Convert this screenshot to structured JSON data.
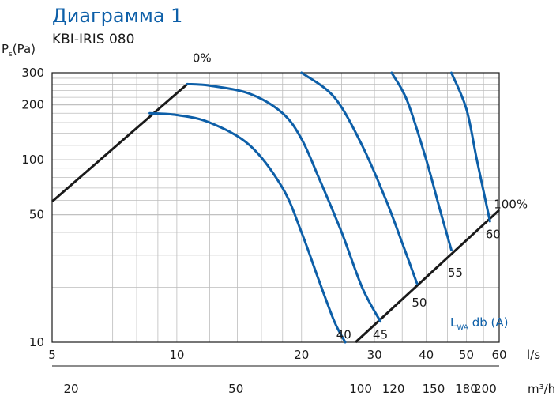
{
  "title": "Диаграмма 1",
  "subtitle": "KBI-IRIS 080",
  "chart_data": {
    "type": "line",
    "xscale": "log",
    "yscale": "log",
    "xlim": [
      5,
      60
    ],
    "ylim": [
      10,
      300
    ],
    "x_ticks": [
      "5",
      "10",
      "20",
      "30",
      "40",
      "50",
      "60"
    ],
    "x_unit": "l/s",
    "x2_ticks": [
      "20",
      "50",
      "100",
      "120",
      "150",
      "180",
      "200"
    ],
    "x2_unit": "m³/h",
    "y_ticks": [
      "10",
      "50",
      "100",
      "200",
      "300"
    ],
    "ylabel": {
      "main": "P",
      "sub": "s",
      "tail": "(Pa)"
    },
    "legend": {
      "main": "L",
      "sub": "WA",
      "tail": " db (A)"
    },
    "colors": {
      "curve": "#0d5fa8",
      "line": "#1a1a1a"
    },
    "series": [
      {
        "name": "0%",
        "x": [
          5,
          10.6
        ],
        "y": [
          59,
          260
        ]
      },
      {
        "name": "100%",
        "x": [
          27,
          60
        ],
        "y": [
          10,
          53
        ]
      },
      {
        "name": "",
        "x": [
          8.6,
          10,
          12,
          15,
          18,
          20,
          22,
          24,
          25.5
        ],
        "y": [
          180,
          176,
          160,
          120,
          70,
          40,
          22,
          13,
          10
        ]
      },
      {
        "name": "",
        "x": [
          10.6,
          12,
          15,
          18,
          20,
          22,
          25,
          28,
          31
        ],
        "y": [
          260,
          255,
          230,
          180,
          130,
          80,
          40,
          20,
          13
        ]
      },
      {
        "name": "",
        "x": [
          20,
          24,
          28,
          32,
          35,
          38
        ],
        "y": [
          300,
          220,
          120,
          60,
          35,
          21
        ]
      },
      {
        "name": "",
        "x": [
          33,
          36,
          40,
          43,
          46
        ],
        "y": [
          300,
          210,
          100,
          55,
          32
        ]
      },
      {
        "name": "",
        "x": [
          46,
          50,
          53,
          57
        ],
        "y": [
          300,
          190,
          100,
          46
        ]
      }
    ],
    "annotations": [
      {
        "text": "40",
        "x": 25.3,
        "y": 11
      },
      {
        "text": "45",
        "x": 31,
        "y": 11
      },
      {
        "text": "50",
        "x": 38.5,
        "y": 16.5
      },
      {
        "text": "55",
        "x": 47,
        "y": 24
      },
      {
        "text": "60",
        "x": 58,
        "y": 39
      },
      {
        "text": "0%",
        "x": 11.5,
        "y": 360
      },
      {
        "text": "100%",
        "x": 64,
        "y": 57
      }
    ]
  }
}
